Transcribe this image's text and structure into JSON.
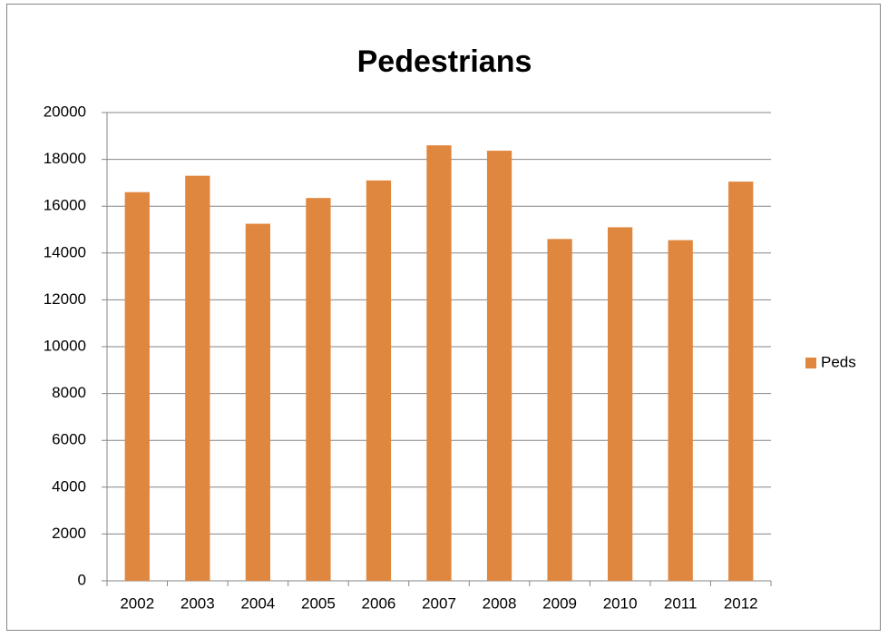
{
  "chart_data": {
    "type": "bar",
    "title": "Pedestrians",
    "categories": [
      "2002",
      "2003",
      "2004",
      "2005",
      "2006",
      "2007",
      "2008",
      "2009",
      "2010",
      "2011",
      "2012"
    ],
    "series": [
      {
        "name": "Peds",
        "color": "#e0873f",
        "values": [
          16600,
          17300,
          15250,
          16350,
          17100,
          18600,
          18370,
          14600,
          15100,
          14550,
          17050
        ]
      }
    ],
    "ylim": [
      0,
      20000
    ],
    "yticks": [
      0,
      2000,
      4000,
      6000,
      8000,
      10000,
      12000,
      14000,
      16000,
      18000,
      20000
    ],
    "grid": true,
    "legend": "right"
  }
}
